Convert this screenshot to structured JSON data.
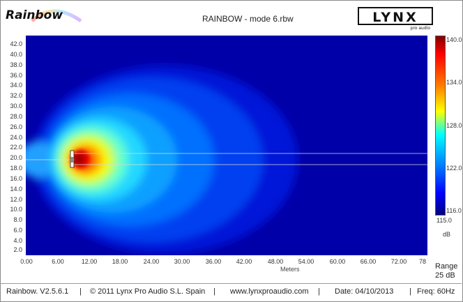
{
  "header": {
    "app_logo": "Rainbow",
    "document_title": "RAINBOW - mode 6.rbw",
    "brand_logo": "LYNX",
    "brand_sub": "pro audio"
  },
  "plot": {
    "y_ticks": [
      "42.0",
      "40.0",
      "38.0",
      "36.0",
      "34.0",
      "32.0",
      "30.0",
      "28.0",
      "26.0",
      "24.0",
      "22.0",
      "20.0",
      "18.0",
      "16.0",
      "14.0",
      "12.0",
      "10.0",
      "8.0",
      "6.0",
      "4.0",
      "2.0"
    ],
    "x_ticks": [
      "0.00",
      "6.00",
      "12.00",
      "18.00",
      "24.00",
      "30.00",
      "36.00",
      "42.00",
      "48.00",
      "54.00",
      "60.00",
      "66.00",
      "72.00",
      "78"
    ],
    "x_label": "Meters",
    "background_color": "#0000a8"
  },
  "colorbar": {
    "ticks": [
      "140.0",
      "134.0",
      "128.0",
      "122.0",
      "116.0"
    ],
    "min_label": "115.0",
    "unit": "dB",
    "colors": [
      "#800000",
      "#ff0000",
      "#ff8000",
      "#ffff00",
      "#00ffff",
      "#0080ff",
      "#0000ff",
      "#000080"
    ]
  },
  "range": {
    "label": "Range",
    "value": "25 dB"
  },
  "footer": {
    "version": "Rainbow.  V2.5.6.1",
    "copyright": "© 2011 Lynx Pro Audio S.L. Spain",
    "website": "www.lynxproaudio.com",
    "date": "Date: 04/10/2013",
    "freq": "Freq: 60Hz",
    "separator": "|"
  }
}
